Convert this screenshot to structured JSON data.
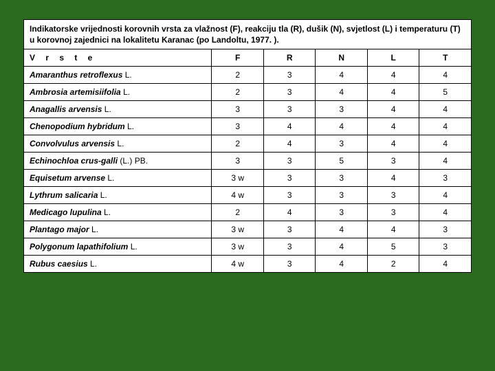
{
  "caption": "Indikatorske vrijednosti korovnih vrsta za vlažnost (F), reakciju tla (R), dušik (N), svjetlost (L) i temperaturu (T) u korovnoj zajednici na lokalitetu Karanac (po Landoltu, 1977. ).",
  "columns": [
    "V r s t e",
    "F",
    "R",
    "N",
    "L",
    "T"
  ],
  "rows": [
    {
      "name": "Amaranthus retroflexus",
      "auth": "L.",
      "F": "2",
      "R": "3",
      "N": "4",
      "L": "4",
      "T": "4"
    },
    {
      "name": "Ambrosia artemisiifolia",
      "auth": "L.",
      "F": "2",
      "R": "3",
      "N": "4",
      "L": "4",
      "T": "5"
    },
    {
      "name": "Anagallis arvensis",
      "auth": "L.",
      "F": "3",
      "R": "3",
      "N": "3",
      "L": "4",
      "T": "4"
    },
    {
      "name": "Chenopodium hybridum",
      "auth": "L.",
      "F": "3",
      "R": "4",
      "N": "4",
      "L": "4",
      "T": "4"
    },
    {
      "name": "Convolvulus arvensis",
      "auth": "L.",
      "F": "2",
      "R": "4",
      "N": "3",
      "L": "4",
      "T": "4"
    },
    {
      "name": "Echinochloa crus-galli",
      "auth": "(L.) PB.",
      "F": "3",
      "R": "3",
      "N": "5",
      "L": "3",
      "T": "4"
    },
    {
      "name": "Equisetum arvense",
      "auth": "L.",
      "F": "3 w",
      "R": "3",
      "N": "3",
      "L": "4",
      "T": "3"
    },
    {
      "name": "Lythrum salicaria",
      "auth": "L.",
      "F": "4 w",
      "R": "3",
      "N": "3",
      "L": "3",
      "T": "4"
    },
    {
      "name": "Medicago lupulina",
      "auth": "L.",
      "F": "2",
      "R": "4",
      "N": "3",
      "L": "3",
      "T": "4"
    },
    {
      "name": "Plantago major",
      "auth": "L.",
      "F": "3 w",
      "R": "3",
      "N": "4",
      "L": "4",
      "T": "3"
    },
    {
      "name": "Polygonum lapathifolium",
      "auth": "L.",
      "F": "3 w",
      "R": "3",
      "N": "4",
      "L": "5",
      "T": "3"
    },
    {
      "name": "Rubus caesius",
      "auth": "L.",
      "F": "4 w",
      "R": "3",
      "N": "4",
      "L": "2",
      "T": "4"
    }
  ],
  "style": {
    "background_color": "#2a6b1f",
    "table_background": "#ffffff",
    "border_color": "#000000",
    "font_family": "Arial",
    "caption_fontsize": 12.5,
    "cell_fontsize": 12,
    "species_italic": true,
    "column_widths_pct": [
      42,
      11.6,
      11.6,
      11.6,
      11.6,
      11.6
    ]
  }
}
